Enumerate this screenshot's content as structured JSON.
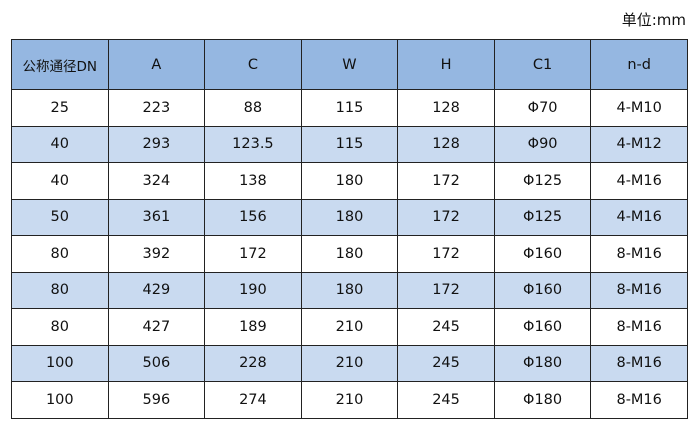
{
  "unit_label": "单位:mm",
  "colors": {
    "header_bg": "#95b7e1",
    "alt_row_bg": "#c9daf0"
  },
  "table": {
    "headers": [
      "公称通径DN",
      "A",
      "C",
      "W",
      "H",
      "C1",
      "n-d"
    ],
    "rows": [
      [
        "25",
        "223",
        "88",
        "115",
        "128",
        "Φ70",
        "4-M10"
      ],
      [
        "40",
        "293",
        "123.5",
        "115",
        "128",
        "Φ90",
        "4-M12"
      ],
      [
        "40",
        "324",
        "138",
        "180",
        "172",
        "Φ125",
        "4-M16"
      ],
      [
        "50",
        "361",
        "156",
        "180",
        "172",
        "Φ125",
        "4-M16"
      ],
      [
        "80",
        "392",
        "172",
        "180",
        "172",
        "Φ160",
        "8-M16"
      ],
      [
        "80",
        "429",
        "190",
        "180",
        "172",
        "Φ160",
        "8-M16"
      ],
      [
        "80",
        "427",
        "189",
        "210",
        "245",
        "Φ160",
        "8-M16"
      ],
      [
        "100",
        "506",
        "228",
        "210",
        "245",
        "Φ180",
        "8-M16"
      ],
      [
        "100",
        "596",
        "274",
        "210",
        "245",
        "Φ180",
        "8-M16"
      ]
    ]
  }
}
